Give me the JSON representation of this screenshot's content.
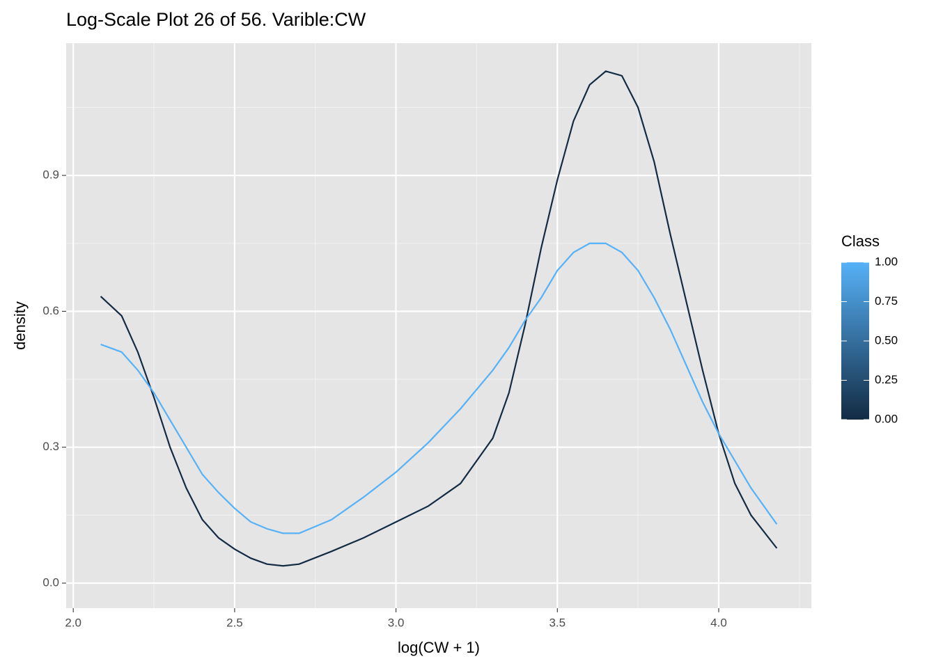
{
  "chart_data": {
    "type": "line",
    "title": "Log-Scale Plot 26 of 56. Varible:CW",
    "x_label": "log(CW + 1)",
    "y_label": "density",
    "x": [
      2.085,
      2.15,
      2.2,
      2.25,
      2.3,
      2.35,
      2.4,
      2.45,
      2.5,
      2.55,
      2.6,
      2.65,
      2.7,
      2.8,
      2.9,
      3.0,
      3.1,
      3.2,
      3.3,
      3.35,
      3.4,
      3.45,
      3.5,
      3.55,
      3.6,
      3.65,
      3.7,
      3.75,
      3.8,
      3.85,
      3.9,
      3.95,
      4.0,
      4.05,
      4.1,
      4.18
    ],
    "series": [
      {
        "color": "#132b43",
        "values": [
          0.633,
          0.59,
          0.51,
          0.41,
          0.3,
          0.21,
          0.14,
          0.1,
          0.075,
          0.055,
          0.042,
          0.038,
          0.042,
          0.07,
          0.1,
          0.135,
          0.17,
          0.22,
          0.32,
          0.42,
          0.57,
          0.74,
          0.89,
          1.02,
          1.1,
          1.13,
          1.12,
          1.05,
          0.93,
          0.77,
          0.62,
          0.47,
          0.33,
          0.22,
          0.15,
          0.077
        ]
      },
      {
        "color": "#56b1f7",
        "values": [
          0.527,
          0.51,
          0.47,
          0.42,
          0.36,
          0.3,
          0.24,
          0.2,
          0.165,
          0.135,
          0.12,
          0.11,
          0.11,
          0.14,
          0.19,
          0.245,
          0.31,
          0.385,
          0.47,
          0.52,
          0.58,
          0.63,
          0.69,
          0.73,
          0.75,
          0.75,
          0.73,
          0.69,
          0.63,
          0.56,
          0.48,
          0.4,
          0.33,
          0.27,
          0.21,
          0.13
        ]
      }
    ],
    "xlim": [
      1.978,
      4.287
    ],
    "ylim": [
      -0.0553,
      1.192
    ],
    "xticks": [
      {
        "value": 2,
        "label": "2.0"
      },
      2.5,
      {
        "value": 3,
        "label": "3.0"
      },
      3.5,
      {
        "value": 4,
        "label": "4.0"
      }
    ],
    "yticks": [
      {
        "value": 0,
        "label": "0.0"
      },
      0.3,
      0.6,
      0.9
    ],
    "grid": true,
    "legend": {
      "title": "Class",
      "colors": [
        "#132b43",
        "#56b1f7"
      ],
      "ticks": [
        {
          "value": 0,
          "label": "0.00"
        },
        {
          "value": 0.25,
          "label": "0.25"
        },
        {
          "value": 0.5,
          "label": "0.50"
        },
        {
          "value": 0.75,
          "label": "0.75"
        },
        {
          "value": 1,
          "label": "1.00"
        }
      ]
    }
  }
}
